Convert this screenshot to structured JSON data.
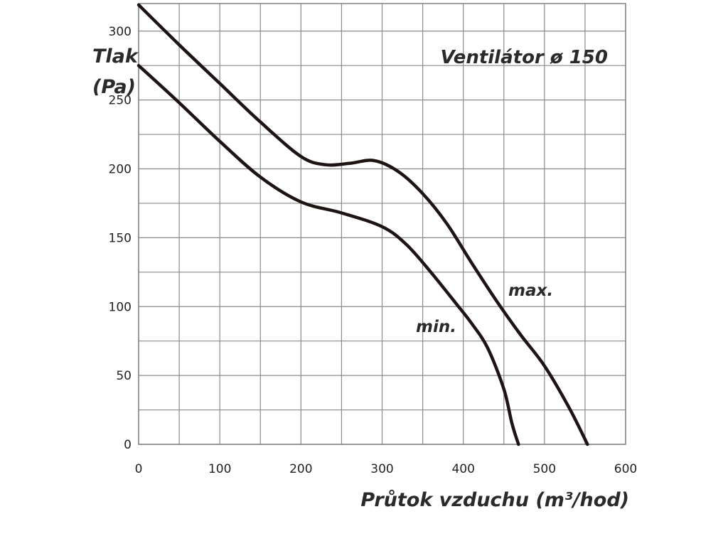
{
  "chart_data": {
    "type": "line",
    "title": "Ventilátor ø 150",
    "xlabel": "Průtok vzduchu (m³/hod)",
    "ylabel": "Tlak (Pa)",
    "xlim": [
      0,
      600
    ],
    "ylim": [
      0,
      320
    ],
    "grid": true,
    "x_ticks": [
      0,
      100,
      200,
      300,
      400,
      500,
      600
    ],
    "y_ticks": [
      0,
      50,
      100,
      150,
      200,
      250,
      300
    ],
    "series": [
      {
        "name": "max.",
        "x": [
          0,
          50,
          100,
          150,
          200,
          230,
          260,
          290,
          320,
          350,
          380,
          410,
          440,
          470,
          500,
          530,
          553
        ],
        "y": [
          319,
          290,
          262,
          234,
          209,
          203,
          204,
          206,
          198,
          182,
          160,
          132,
          105,
          80,
          57,
          27,
          0
        ]
      },
      {
        "name": "min.",
        "x": [
          0,
          50,
          100,
          150,
          200,
          250,
          300,
          330,
          360,
          390,
          410,
          430,
          450,
          460,
          468
        ],
        "y": [
          275,
          248,
          220,
          194,
          176,
          168,
          158,
          145,
          125,
          103,
          88,
          70,
          40,
          15,
          0
        ]
      }
    ],
    "series_labels": [
      "max.",
      "min."
    ]
  }
}
